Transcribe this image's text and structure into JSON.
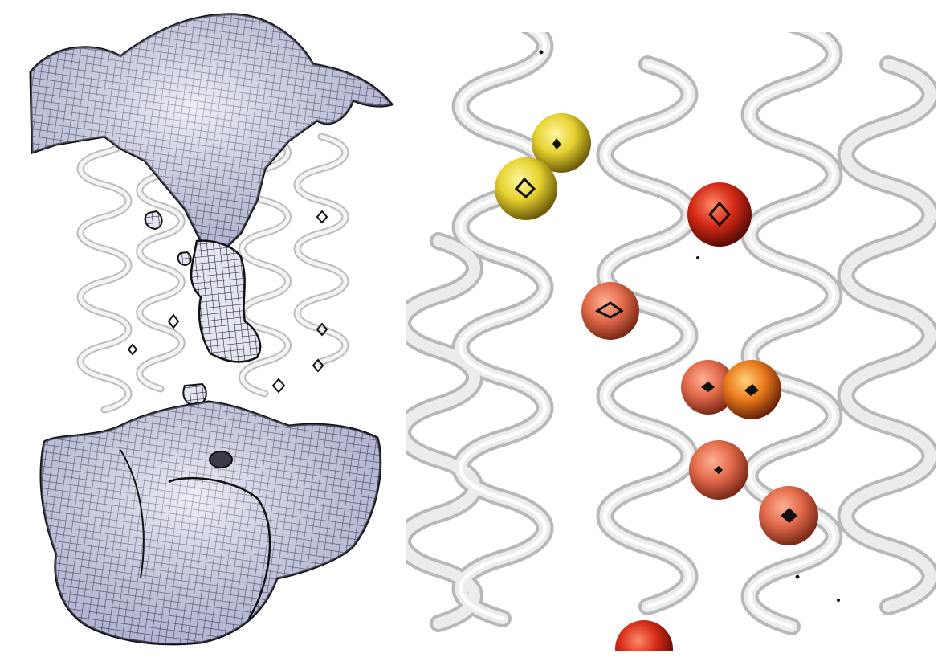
{
  "figure": {
    "panels": [
      {
        "id": "left",
        "depicts": "mesh-density-channel"
      },
      {
        "id": "right",
        "depicts": "helix-bundle-with-ions"
      }
    ],
    "colors": {
      "background": "#ffffff",
      "helix": "#dedede",
      "helix_shadow": "#bdbdbd",
      "mesh_line": "#1b1b2a",
      "mesh_fill": "#d7d8ea",
      "mesh_tint": "#7f82b8",
      "sphere_yellow": "#e3d12e",
      "sphere_red": "#d6301a",
      "sphere_salmon": "#e26a4b",
      "sphere_orange": "#e9791d"
    },
    "icons": [
      "mesh-icon",
      "sphere-marker-icon",
      "octahedron-icon"
    ]
  }
}
